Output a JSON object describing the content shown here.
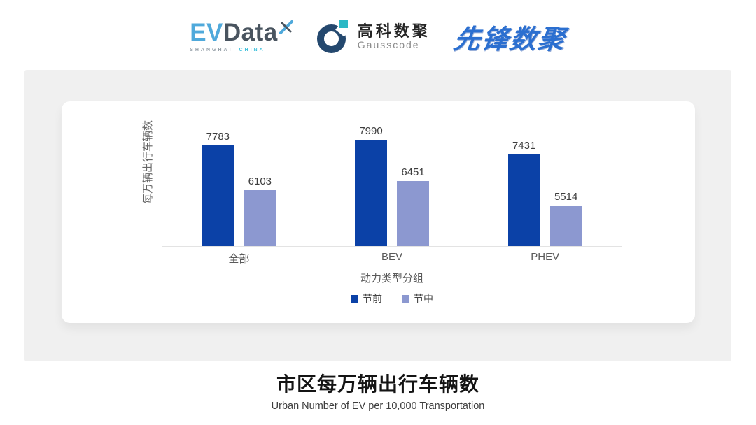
{
  "header": {
    "evdata": {
      "ev": "EV",
      "data": "Data",
      "sub_left": "SHANGHAI",
      "sub_right": "CHINA"
    },
    "gausscode": {
      "cn": "高科数聚",
      "en": "Gausscode"
    },
    "xianfeng": {
      "text": "先锋数聚"
    }
  },
  "chart_data": {
    "type": "bar",
    "categories": [
      "全部",
      "BEV",
      "PHEV"
    ],
    "series": [
      {
        "name": "节前",
        "color": "#0B41A7",
        "values": [
          7783,
          7990,
          7431
        ]
      },
      {
        "name": "节中",
        "color": "#8C98D0",
        "values": [
          6103,
          6451,
          5514
        ]
      }
    ],
    "ylabel": "每万辆出行车辆数",
    "xlabel": "动力类型分组",
    "ylim": [
      4000,
      8200
    ],
    "grid": false,
    "legend_position": "bottom",
    "axis_line_color": "#E3E3E3",
    "title": "市区每万辆出行车辆数",
    "subtitle": "Urban Number of EV per 10,000 Transportation"
  }
}
